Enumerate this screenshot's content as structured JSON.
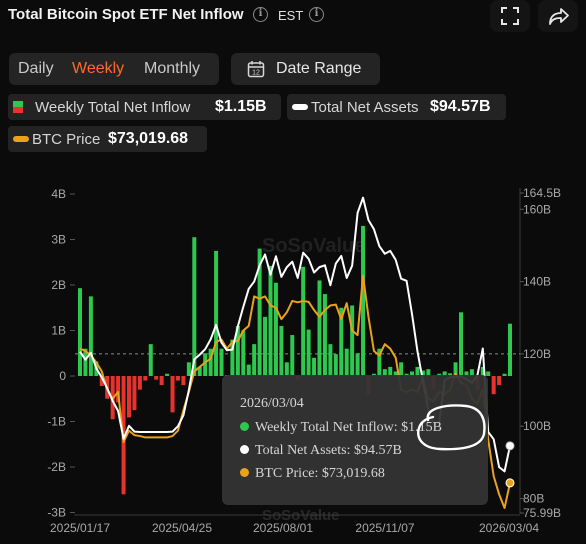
{
  "header": {
    "title": "Total Bitcoin Spot ETF Net Inflow",
    "timezone": "EST"
  },
  "toolbar": {
    "fullscreen_icon": "fullscreen-icon",
    "share_icon": "share-icon"
  },
  "period_tabs": [
    {
      "label": "Daily",
      "active": false
    },
    {
      "label": "Weekly",
      "active": true
    },
    {
      "label": "Monthly",
      "active": false
    }
  ],
  "date_range": {
    "label": "Date Range",
    "icon": "calendar-icon"
  },
  "legend": {
    "inflow": {
      "label": "Weekly Total Net Inflow",
      "value": "$1.15B"
    },
    "assets": {
      "label": "Total Net Assets",
      "value": "$94.57B"
    },
    "btc": {
      "label": "BTC Price",
      "value": "$73,019.68"
    }
  },
  "colors": {
    "accent": "#ff6a2b",
    "positive": "#2ec84f",
    "negative": "#e6332e",
    "assets_line": "#ffffff",
    "btc_line": "#e9a21a",
    "annotation": "#ffffff"
  },
  "watermark": "SoSoValue",
  "chart_data": {
    "type": "bar",
    "x_ticks": [
      "2025/01/17",
      "2025/04/25",
      "2025/08/01",
      "2025/11/07",
      "2026/03/04"
    ],
    "y_left_ticks": [
      "4B",
      "3B",
      "2B",
      "1B",
      "0",
      "-1B",
      "-2B",
      "-3B"
    ],
    "y_left_range": [
      -3,
      4
    ],
    "y_right_ticks": [
      "164.5B",
      "160B",
      "140B",
      "120B",
      "100B",
      "80B",
      "75.99B"
    ],
    "y_right_range": [
      75.99,
      164.5
    ],
    "net_inflow": [
      1.93,
      0.6,
      1.75,
      0.32,
      -0.22,
      -0.5,
      -0.95,
      -0.58,
      -2.6,
      -0.91,
      -0.75,
      -0.3,
      -0.1,
      0.7,
      -0.08,
      -0.2,
      0.05,
      -0.8,
      -0.1,
      -0.2,
      0.3,
      3.05,
      0.2,
      0.5,
      0.6,
      2.75,
      0.6,
      0.02,
      0.8,
      1.1,
      1.0,
      0.25,
      0.7,
      2.8,
      1.3,
      2.42,
      2.05,
      1.1,
      0.3,
      0.9,
      -0.1,
      2.4,
      1.02,
      0.4,
      2.1,
      1.8,
      0.7,
      0.48,
      1.5,
      0.6,
      1.55,
      0.5,
      3.3,
      -0.4,
      0.05,
      0.6,
      0.15,
      0.2,
      0.1,
      0.3,
      0.05,
      0.1,
      0.2,
      0.12,
      0.15,
      -0.3,
      0.05,
      0.1,
      0.06,
      0.3,
      1.4,
      0.1,
      0.15,
      -0.3,
      0.2,
      0.1,
      -0.4,
      -0.2,
      0.05,
      1.15
    ],
    "total_net_assets": [
      120.6,
      118.4,
      120.3,
      116.0,
      113.5,
      110.5,
      107.0,
      104.2,
      96.5,
      100.1,
      98.5,
      98.4,
      98.4,
      98.4,
      98.4,
      98.4,
      98.4,
      98.5,
      100.0,
      103.0,
      110.0,
      118.5,
      119.8,
      121.3,
      124.0,
      128.0,
      123.1,
      121.0,
      121.2,
      127.6,
      133.0,
      138.0,
      140.0,
      144.5,
      147.5,
      141.9,
      147.0,
      141.3,
      144.0,
      145.5,
      141.0,
      148.0,
      146.3,
      142.5,
      144.0,
      144.5,
      139.0,
      145.0,
      147.1,
      141.0,
      144.4,
      159.0,
      163.2,
      157.0,
      154.5,
      149.8,
      147.7,
      148.5,
      146.0,
      140.8,
      140.2,
      131.0,
      120.7,
      112.5,
      104.4,
      100.5,
      101.1,
      112.7,
      113.5,
      113.6,
      113.8,
      113.0,
      112.0,
      114.0,
      121.5,
      98.4,
      96.4,
      88.7,
      87.5,
      94.57
    ],
    "btc_price_plot_level": [
      0.6,
      0.55,
      0.45,
      0.3,
      0.1,
      -0.3,
      -0.5,
      -0.35,
      -1.45,
      -1.2,
      -1.3,
      -1.32,
      -1.35,
      -1.35,
      -1.35,
      -1.35,
      -1.35,
      -1.32,
      -1.2,
      -0.75,
      -0.35,
      0.1,
      0.2,
      0.3,
      0.38,
      0.75,
      0.8,
      0.6,
      0.75,
      0.77,
      1.0,
      1.1,
      1.75,
      1.7,
      1.75,
      1.55,
      1.5,
      1.25,
      1.4,
      1.65,
      1.62,
      1.65,
      1.63,
      1.45,
      1.3,
      1.45,
      1.55,
      1.57,
      1.25,
      1.6,
      1.0,
      0.9,
      2.2,
      1.3,
      0.55,
      0.45,
      0.7,
      0.6,
      0.4,
      -0.3,
      -0.35,
      -0.3,
      -0.35,
      -0.05,
      -0.5,
      -0.55,
      -0.35,
      -0.4,
      -0.3,
      0.05,
      -0.15,
      -0.2,
      -0.5,
      -0.6,
      -0.3,
      -1.4,
      -2.2,
      -2.6,
      -2.9,
      -2.35
    ],
    "reference_line": 120,
    "tooltip": {
      "date": "2026/03/04",
      "rows": [
        {
          "label": "Weekly Total Net Inflow:",
          "value": "$1.15B",
          "color": "#2ec84f"
        },
        {
          "label": "Total Net Assets:",
          "value": "$94.57B",
          "color": "#ffffff"
        },
        {
          "label": "BTC Price:",
          "value": "$73,019.68",
          "color": "#e9a21a"
        }
      ]
    }
  }
}
